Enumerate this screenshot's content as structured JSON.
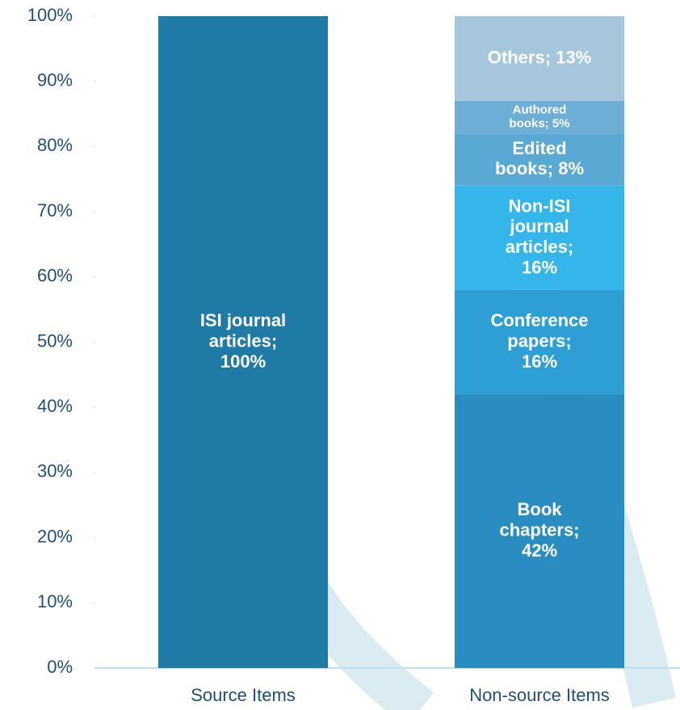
{
  "chart_data": {
    "type": "stacked_bar",
    "categories": [
      "Source Items",
      "Non-source Items"
    ],
    "series": [
      {
        "color": "#1f7aa6",
        "values": [
          100,
          null
        ],
        "value_labels": [
          "ISI journal articles; 100%",
          null
        ]
      },
      {
        "color": "#2a8dc2",
        "values": [
          null,
          42
        ],
        "value_labels": [
          null,
          "Book chapters; 42%"
        ]
      },
      {
        "color": "#2e9fd4",
        "values": [
          null,
          16
        ],
        "value_labels": [
          null,
          "Conference papers; 16%"
        ]
      },
      {
        "color": "#35b6ea",
        "values": [
          null,
          16
        ],
        "value_labels": [
          null,
          "Non-ISI journal articles; 16%"
        ]
      },
      {
        "color": "#5aa8d4",
        "values": [
          null,
          8
        ],
        "value_labels": [
          null,
          "Edited books; 8%"
        ]
      },
      {
        "color": "#6caed6",
        "values": [
          null,
          5
        ],
        "value_labels": [
          null,
          "Authored books; 5%"
        ]
      },
      {
        "color": "#a6c6dc",
        "values": [
          null,
          13
        ],
        "value_labels": [
          null,
          "Others; 13%"
        ]
      }
    ],
    "ylim": [
      0,
      100
    ],
    "yticks": [
      {
        "value": 0,
        "label": "0%"
      },
      {
        "value": 10,
        "label": "10%"
      },
      {
        "value": 20,
        "label": "20%"
      },
      {
        "value": 30,
        "label": "30%"
      },
      {
        "value": 40,
        "label": "40%"
      },
      {
        "value": 50,
        "label": "50%"
      },
      {
        "value": 60,
        "label": "60%"
      },
      {
        "value": 70,
        "label": "70%"
      },
      {
        "value": 80,
        "label": "80%"
      },
      {
        "value": 90,
        "label": "90%"
      },
      {
        "value": 100,
        "label": "100%"
      }
    ],
    "grid": false
  }
}
